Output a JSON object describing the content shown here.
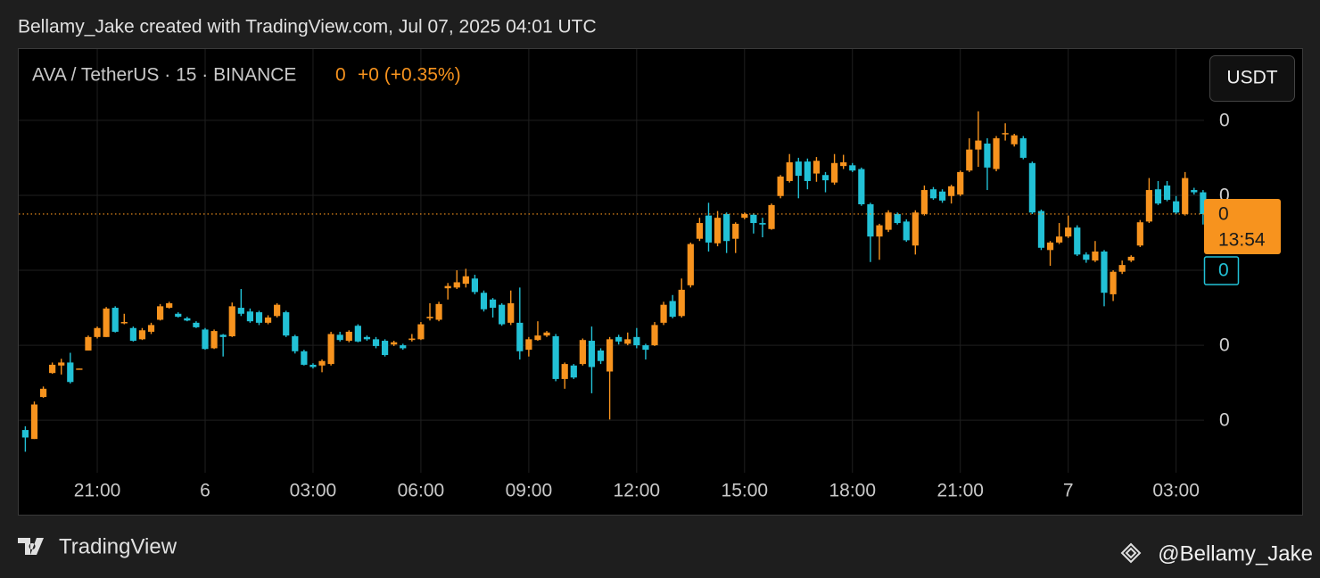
{
  "header": {
    "attribution": "Bellamy_Jake created with TradingView.com, Jul 07, 2025 04:01 UTC",
    "symbol": "AVA / TetherUS · 15 · BINANCE",
    "change": "+0 (+0.35%)",
    "currency": "USDT"
  },
  "footer": {
    "brand": "TradingView",
    "author": "@Bellamy_Jake"
  },
  "chart_data": {
    "type": "candlestick",
    "categories": [
      null,
      null,
      null,
      null,
      null,
      null,
      null,
      null,
      "21:00",
      null,
      null,
      null,
      null,
      null,
      null,
      null,
      null,
      null,
      null,
      null,
      "6",
      null,
      null,
      null,
      null,
      null,
      null,
      null,
      null,
      null,
      null,
      null,
      "03:00",
      null,
      null,
      null,
      null,
      null,
      null,
      null,
      null,
      null,
      null,
      null,
      "06:00",
      null,
      null,
      null,
      null,
      null,
      null,
      null,
      null,
      null,
      null,
      null,
      "09:00",
      null,
      null,
      null,
      null,
      null,
      null,
      null,
      null,
      null,
      null,
      null,
      "12:00",
      null,
      null,
      null,
      null,
      null,
      null,
      null,
      null,
      null,
      null,
      null,
      "15:00",
      null,
      null,
      null,
      null,
      null,
      null,
      null,
      null,
      null,
      null,
      null,
      "18:00",
      null,
      null,
      null,
      null,
      null,
      null,
      null,
      null,
      null,
      null,
      null,
      "21:00",
      null,
      null,
      null,
      null,
      null,
      null,
      null,
      null,
      null,
      null,
      null,
      "7",
      null,
      null,
      null,
      null,
      null,
      null,
      null,
      null,
      null,
      null,
      null,
      "03:00",
      null,
      null,
      null
    ],
    "open": [
      0.4387,
      0.4375,
      0.4431,
      0.4463,
      0.4473,
      0.4477,
      0.4468,
      0.4493,
      0.4511,
      0.4511,
      0.455,
      0.453,
      0.4523,
      0.4508,
      0.4518,
      0.4534,
      0.455,
      0.4542,
      0.4536,
      0.453,
      0.4521,
      0.4496,
      0.4514,
      0.4512,
      0.455,
      0.4545,
      0.4544,
      0.453,
      0.4539,
      0.4544,
      0.4512,
      0.4492,
      0.4474,
      0.4473,
      0.4475,
      0.4514,
      0.4506,
      0.4526,
      0.4511,
      0.4508,
      0.4506,
      0.4501,
      0.45,
      0.4507,
      0.4508,
      0.4536,
      0.4534,
      0.4576,
      0.4577,
      0.4582,
      0.4589,
      0.457,
      0.4561,
      0.4554,
      0.453,
      0.453,
      0.4494,
      0.4507,
      0.4513,
      0.4512,
      0.4455,
      0.4473,
      0.4475,
      0.4506,
      0.4493,
      0.4465,
      0.4511,
      0.4502,
      0.4511,
      0.45,
      0.45,
      0.453,
      0.4559,
      0.4539,
      0.458,
      0.4642,
      0.4673,
      0.4636,
      0.4675,
      0.4642,
      0.467,
      0.4674,
      0.4663,
      0.4655,
      0.4699,
      0.4719,
      0.4745,
      0.4745,
      0.4729,
      0.4727,
      0.4717,
      0.4739,
      0.474,
      0.4735,
      0.4688,
      0.4645,
      0.4654,
      0.4675,
      0.4665,
      0.4633,
      0.4675,
      0.4708,
      0.4705,
      0.4699,
      0.4701,
      0.4733,
      0.4761,
      0.4769,
      0.4735,
      0.4782,
      0.4768,
      0.4776,
      0.4743,
      0.4679,
      0.4627,
      0.4637,
      0.4645,
      0.4657,
      0.4621,
      0.4613,
      0.4625,
      0.4568,
      0.4598,
      0.4613,
      0.4633,
      0.4665,
      0.4708,
      0.4713,
      0.4692,
      0.4675,
      0.4707,
      0.4704
    ],
    "high": [
      0.4392,
      0.4425,
      0.4445,
      0.4477,
      0.4482,
      0.449,
      0.4469,
      0.4513,
      0.4525,
      0.4551,
      0.4552,
      0.4542,
      0.4525,
      0.4523,
      0.453,
      0.4555,
      0.4558,
      0.4544,
      0.4538,
      0.4532,
      0.4523,
      0.4521,
      0.4515,
      0.4557,
      0.4575,
      0.4549,
      0.4546,
      0.454,
      0.4556,
      0.4546,
      0.4514,
      0.4494,
      0.4476,
      0.4481,
      0.4518,
      0.4518,
      0.452,
      0.4528,
      0.4513,
      0.4511,
      0.4508,
      0.4506,
      0.4502,
      0.4515,
      0.4531,
      0.4556,
      0.4558,
      0.4583,
      0.46,
      0.4602,
      0.4594,
      0.4573,
      0.4563,
      0.4556,
      0.4573,
      0.4577,
      0.4511,
      0.4532,
      0.4519,
      0.4515,
      0.4477,
      0.4475,
      0.4509,
      0.4525,
      0.4496,
      0.4511,
      0.4514,
      0.4517,
      0.4523,
      0.4502,
      0.4531,
      0.4558,
      0.4567,
      0.4589,
      0.4637,
      0.467,
      0.469,
      0.4679,
      0.4677,
      0.4664,
      0.4677,
      0.4676,
      0.467,
      0.4689,
      0.4727,
      0.4755,
      0.475,
      0.4749,
      0.4751,
      0.4731,
      0.4755,
      0.4754,
      0.4743,
      0.4737,
      0.469,
      0.4662,
      0.468,
      0.4677,
      0.4668,
      0.468,
      0.4713,
      0.4711,
      0.4708,
      0.4714,
      0.4733,
      0.4776,
      0.4812,
      0.4776,
      0.4779,
      0.4796,
      0.4782,
      0.4779,
      0.4745,
      0.4681,
      0.4639,
      0.4663,
      0.4673,
      0.466,
      0.4624,
      0.4639,
      0.4627,
      0.46,
      0.4613,
      0.462,
      0.4667,
      0.4723,
      0.4719,
      0.4719,
      0.4699,
      0.4731,
      0.471,
      0.4707
    ],
    "low": [
      0.4358,
      0.4375,
      0.443,
      0.4462,
      0.4461,
      0.4449,
      0.4468,
      0.4493,
      0.4509,
      0.4511,
      0.4517,
      0.4528,
      0.4505,
      0.4507,
      0.4515,
      0.4533,
      0.4549,
      0.4537,
      0.4532,
      0.4523,
      0.4494,
      0.4495,
      0.4485,
      0.4511,
      0.4539,
      0.453,
      0.4527,
      0.4528,
      0.4537,
      0.4511,
      0.4489,
      0.4473,
      0.4469,
      0.4464,
      0.4473,
      0.4505,
      0.4504,
      0.4504,
      0.4506,
      0.4496,
      0.4485,
      0.4499,
      0.4494,
      0.4505,
      0.4507,
      0.4533,
      0.4532,
      0.4561,
      0.4575,
      0.4577,
      0.4568,
      0.4545,
      0.4537,
      0.4526,
      0.4527,
      0.4481,
      0.4485,
      0.4506,
      0.4511,
      0.4452,
      0.4442,
      0.4455,
      0.4473,
      0.4436,
      0.4475,
      0.4401,
      0.4501,
      0.45,
      0.4496,
      0.4481,
      0.4499,
      0.4527,
      0.4536,
      0.4537,
      0.4577,
      0.4639,
      0.4625,
      0.4632,
      0.4623,
      0.4623,
      0.4668,
      0.4649,
      0.4644,
      0.4654,
      0.4696,
      0.4717,
      0.4696,
      0.4708,
      0.4718,
      0.4704,
      0.4714,
      0.4735,
      0.4731,
      0.4686,
      0.4611,
      0.4614,
      0.4651,
      0.4661,
      0.4638,
      0.4621,
      0.4673,
      0.4694,
      0.469,
      0.4689,
      0.4699,
      0.4731,
      0.4738,
      0.4707,
      0.4732,
      0.4773,
      0.4765,
      0.4748,
      0.4675,
      0.4627,
      0.4606,
      0.4635,
      0.4643,
      0.4619,
      0.461,
      0.4611,
      0.4552,
      0.4559,
      0.4595,
      0.4611,
      0.4631,
      0.4663,
      0.4687,
      0.4692,
      0.4675,
      0.4673,
      0.4701,
      0.4661
    ],
    "close": [
      0.4377,
      0.4421,
      0.4442,
      0.4474,
      0.4477,
      0.4451,
      0.4469,
      0.4511,
      0.4523,
      0.4549,
      0.4518,
      0.4531,
      0.4506,
      0.452,
      0.4527,
      0.4552,
      0.4556,
      0.4538,
      0.4533,
      0.4524,
      0.4495,
      0.4519,
      0.4511,
      0.4552,
      0.4542,
      0.4532,
      0.453,
      0.4537,
      0.4554,
      0.4513,
      0.4492,
      0.4474,
      0.4471,
      0.4479,
      0.4515,
      0.4507,
      0.4518,
      0.4505,
      0.4508,
      0.4499,
      0.4487,
      0.4504,
      0.4496,
      0.4509,
      0.4528,
      0.4538,
      0.4555,
      0.4579,
      0.4584,
      0.4592,
      0.4571,
      0.4548,
      0.455,
      0.4528,
      0.4556,
      0.4492,
      0.4508,
      0.4513,
      0.4517,
      0.4455,
      0.4475,
      0.4457,
      0.4507,
      0.4471,
      0.4479,
      0.4508,
      0.4505,
      0.4508,
      0.45,
      0.4494,
      0.4527,
      0.4554,
      0.4538,
      0.4574,
      0.4635,
      0.4663,
      0.4637,
      0.467,
      0.4639,
      0.4662,
      0.4675,
      0.4663,
      0.4661,
      0.4687,
      0.4725,
      0.4744,
      0.4726,
      0.4719,
      0.4746,
      0.472,
      0.4743,
      0.4744,
      0.4733,
      0.4688,
      0.4645,
      0.466,
      0.4677,
      0.4663,
      0.464,
      0.4677,
      0.4707,
      0.4696,
      0.4693,
      0.4712,
      0.4731,
      0.4761,
      0.4773,
      0.4737,
      0.4776,
      0.4783,
      0.478,
      0.475,
      0.4677,
      0.463,
      0.4637,
      0.4645,
      0.4657,
      0.4621,
      0.4614,
      0.4625,
      0.457,
      0.4598,
      0.4607,
      0.4618,
      0.4664,
      0.4707,
      0.4689,
      0.4694,
      0.4677,
      0.4723,
      0.4704,
      0.4675
    ],
    "up_color": "#f7931e",
    "down_color": "#22c1d6",
    "ylim": [
      0.433,
      0.4895
    ],
    "yticks": [
      {
        "value": 0.48,
        "label": "0"
      },
      {
        "value": 0.47,
        "label": "0"
      },
      {
        "value": 0.46,
        "label": "0"
      },
      {
        "value": 0.45,
        "label": "0"
      },
      {
        "value": 0.44,
        "label": "0"
      }
    ],
    "grid": true,
    "last_price": {
      "value": 0.4675,
      "label": "0",
      "countdown": "13:54"
    },
    "marker": {
      "value": 0.46,
      "label": "0"
    }
  }
}
